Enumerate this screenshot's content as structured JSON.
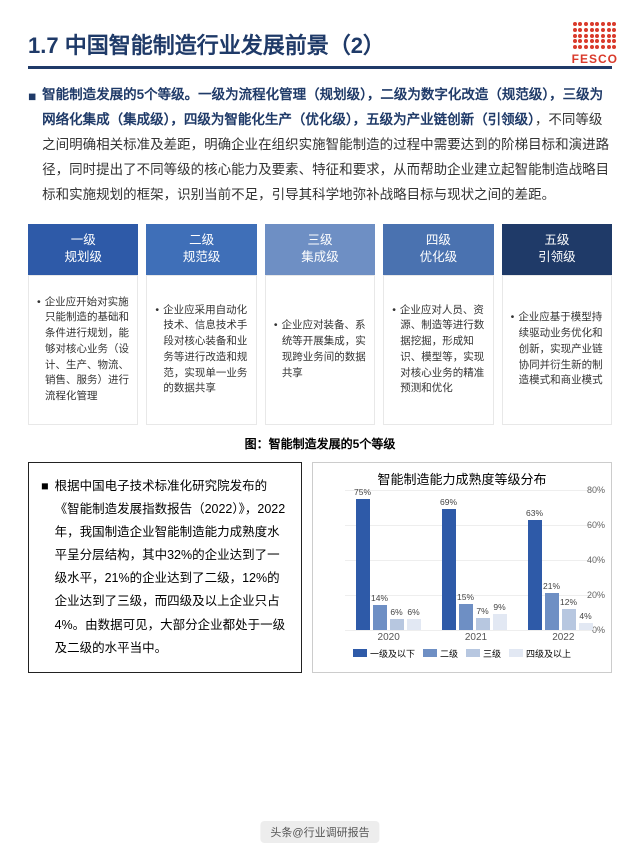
{
  "title": "1.7 中国智能制造行业发展前景（2）",
  "logo_text": "FESCO",
  "intro": {
    "highlight": "智能制造发展的5个等级。一级为流程化管理（规划级），二级为数字化改造（规范级），三级为网络化集成（集成级），四级为智能化生产（优化级），五级为产业链创新（引领级）",
    "rest": "，不同等级之间明确相关标准及差距，明确企业在组织实施智能制造的过程中需要达到的阶梯目标和演进路径，同时提出了不同等级的核心能力及要素、特征和要求，从而帮助企业建立起智能制造战略目标和实施规划的框架，识别当前不足，引导其科学地弥补战略目标与现状之间的差距。"
  },
  "levels": [
    {
      "head1": "一级",
      "head2": "规划级",
      "color": "#2e5aa8",
      "body": "企业应开始对实施只能制造的基础和条件进行规划，能够对核心业务（设计、生产、物流、销售、服务）进行流程化管理"
    },
    {
      "head1": "二级",
      "head2": "规范级",
      "color": "#3f6fb8",
      "body": "企业应采用自动化技术、信息技术手段对核心装备和业务等进行改造和规范，实现单一业务的数据共享"
    },
    {
      "head1": "三级",
      "head2": "集成级",
      "color": "#6e8fc4",
      "body": "企业应对装备、系统等开展集成，实现跨业务间的数据共享"
    },
    {
      "head1": "四级",
      "head2": "优化级",
      "color": "#4a72b0",
      "body": "企业应对人员、资源、制造等进行数据挖掘，形成知识、模型等，实现对核心业务的精准预测和优化"
    },
    {
      "head1": "五级",
      "head2": "引领级",
      "color": "#1f3a68",
      "body": "企业应基于模型持续驱动业务优化和创新，实现产业链协同并衍生新的制造模式和商业模式"
    }
  ],
  "fig_caption": "图：智能制造发展的5个等级",
  "note": "根据中国电子技术标准化研究院发布的《智能制造发展指数报告（2022）》，2022年，我国制造企业智能制造能力成熟度水平呈分层结构，其中32%的企业达到了一级水平，21%的企业达到了二级，12%的企业达到了三级，而四级及以上企业只占4%。由数据可见，大部分企业都处于一级及二级的水平当中。",
  "chart": {
    "title": "智能制造能力成熟度等级分布",
    "ylim": [
      0,
      80
    ],
    "ytick_step": 20,
    "series_colors": [
      "#2e5aa8",
      "#6e8fc4",
      "#b7c7e0",
      "#e2e8f3"
    ],
    "legend": [
      "一级及以下",
      "二级",
      "三级",
      "四级及以上"
    ],
    "years": [
      "2020",
      "2021",
      "2022"
    ],
    "data": [
      [
        75,
        14,
        6,
        6
      ],
      [
        69,
        15,
        7,
        9
      ],
      [
        63,
        21,
        12,
        4
      ]
    ],
    "bar_labels": [
      [
        "75%",
        "14%",
        "6%",
        "6%"
      ],
      [
        "69%",
        "15%",
        "7%",
        "9%"
      ],
      [
        "63%",
        "21%",
        "12%",
        "4%"
      ]
    ]
  },
  "footer": "头条@行业调研报告"
}
